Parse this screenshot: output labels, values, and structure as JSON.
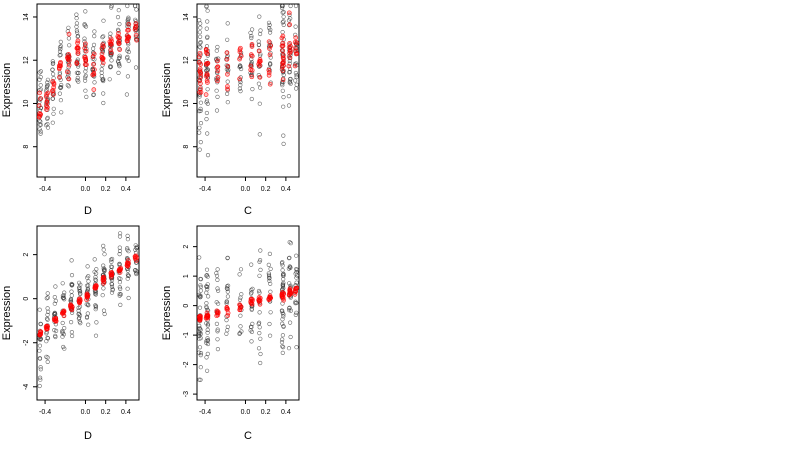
{
  "chart_data": [
    {
      "type": "scatter",
      "xlabel": "D",
      "ylabel": "Expression",
      "xticks": [
        "-0.4",
        "0.0",
        "0.2",
        "0.4"
      ],
      "yticks": [
        "8",
        "10",
        "12",
        "14"
      ],
      "xlim": [
        -0.48,
        0.53
      ],
      "ylim": [
        6.6,
        14.6
      ],
      "groups": [
        {
          "x": -0.45,
          "obs_mean": 10.2,
          "obs_sd": 1.0,
          "n": 22,
          "fit_mean": 9.7,
          "fit_sd": 0.35,
          "fit_n": 8
        },
        {
          "x": -0.38,
          "obs_mean": 10.3,
          "obs_sd": 0.8,
          "n": 20,
          "fit_mean": 10.1,
          "fit_sd": 0.3,
          "fit_n": 8
        },
        {
          "x": -0.32,
          "obs_mean": 10.8,
          "obs_sd": 0.7,
          "n": 16,
          "fit_mean": 10.7,
          "fit_sd": 0.3,
          "fit_n": 7
        },
        {
          "x": -0.25,
          "obs_mean": 11.4,
          "obs_sd": 0.8,
          "n": 18,
          "fit_mean": 11.5,
          "fit_sd": 0.3,
          "fit_n": 8
        },
        {
          "x": -0.17,
          "obs_mean": 12.0,
          "obs_sd": 0.8,
          "n": 22,
          "fit_mean": 12.1,
          "fit_sd": 0.4,
          "fit_n": 10
        },
        {
          "x": -0.08,
          "obs_mean": 12.2,
          "obs_sd": 0.9,
          "n": 22,
          "fit_mean": 12.2,
          "fit_sd": 0.4,
          "fit_n": 10
        },
        {
          "x": 0.0,
          "obs_mean": 12.3,
          "obs_sd": 0.9,
          "n": 22,
          "fit_mean": 12.3,
          "fit_sd": 0.4,
          "fit_n": 10
        },
        {
          "x": 0.08,
          "obs_mean": 11.8,
          "obs_sd": 0.9,
          "n": 20,
          "fit_mean": 11.8,
          "fit_sd": 0.4,
          "fit_n": 8
        },
        {
          "x": 0.17,
          "obs_mean": 12.1,
          "obs_sd": 0.9,
          "n": 22,
          "fit_mean": 12.2,
          "fit_sd": 0.3,
          "fit_n": 10
        },
        {
          "x": 0.25,
          "obs_mean": 12.5,
          "obs_sd": 0.9,
          "n": 20,
          "fit_mean": 12.6,
          "fit_sd": 0.3,
          "fit_n": 8
        },
        {
          "x": 0.33,
          "obs_mean": 12.8,
          "obs_sd": 0.8,
          "n": 20,
          "fit_mean": 12.8,
          "fit_sd": 0.3,
          "fit_n": 8
        },
        {
          "x": 0.42,
          "obs_mean": 13.2,
          "obs_sd": 0.8,
          "n": 22,
          "fit_mean": 13.2,
          "fit_sd": 0.3,
          "fit_n": 10
        },
        {
          "x": 0.5,
          "obs_mean": 13.2,
          "obs_sd": 0.6,
          "n": 16,
          "fit_mean": 13.3,
          "fit_sd": 0.3,
          "fit_n": 6
        }
      ],
      "observed_color": "#333333",
      "fitted_color": "#ff0000",
      "grid": false
    },
    {
      "type": "scatter",
      "xlabel": "C",
      "ylabel": "Expression",
      "xticks": [
        "-0.4",
        "0.0",
        "0.2",
        "0.4"
      ],
      "yticks": [
        "8",
        "10",
        "12",
        "14"
      ],
      "xlim": [
        -0.48,
        0.53
      ],
      "ylim": [
        6.6,
        14.6
      ],
      "groups": [
        {
          "x": -0.45,
          "obs_mean": 11.0,
          "obs_sd": 1.3,
          "n": 34,
          "fit_mean": 11.4,
          "fit_sd": 0.6,
          "fit_n": 14
        },
        {
          "x": -0.38,
          "obs_mean": 11.2,
          "obs_sd": 1.4,
          "n": 34,
          "fit_mean": 11.5,
          "fit_sd": 0.6,
          "fit_n": 14
        },
        {
          "x": -0.28,
          "obs_mean": 11.5,
          "obs_sd": 1.0,
          "n": 16,
          "fit_mean": 11.6,
          "fit_sd": 0.5,
          "fit_n": 6
        },
        {
          "x": -0.18,
          "obs_mean": 11.6,
          "obs_sd": 1.1,
          "n": 16,
          "fit_mean": 11.7,
          "fit_sd": 0.5,
          "fit_n": 6
        },
        {
          "x": -0.05,
          "obs_mean": 11.8,
          "obs_sd": 1.0,
          "n": 14,
          "fit_mean": 11.8,
          "fit_sd": 0.5,
          "fit_n": 6
        },
        {
          "x": 0.06,
          "obs_mean": 11.9,
          "obs_sd": 1.1,
          "n": 18,
          "fit_mean": 11.9,
          "fit_sd": 0.5,
          "fit_n": 8
        },
        {
          "x": 0.14,
          "obs_mean": 11.7,
          "obs_sd": 1.1,
          "n": 18,
          "fit_mean": 11.8,
          "fit_sd": 0.5,
          "fit_n": 8
        },
        {
          "x": 0.24,
          "obs_mean": 12.0,
          "obs_sd": 1.1,
          "n": 18,
          "fit_mean": 12.1,
          "fit_sd": 0.5,
          "fit_n": 8
        },
        {
          "x": 0.37,
          "obs_mean": 12.1,
          "obs_sd": 1.5,
          "n": 40,
          "fit_mean": 12.2,
          "fit_sd": 0.8,
          "fit_n": 16
        },
        {
          "x": 0.44,
          "obs_mean": 12.2,
          "obs_sd": 1.2,
          "n": 26,
          "fit_mean": 12.3,
          "fit_sd": 0.6,
          "fit_n": 10
        },
        {
          "x": 0.5,
          "obs_mean": 12.4,
          "obs_sd": 1.0,
          "n": 20,
          "fit_mean": 12.6,
          "fit_sd": 0.5,
          "fit_n": 8
        }
      ],
      "observed_color": "#333333",
      "fitted_color": "#ff0000",
      "grid": false
    },
    {
      "type": "scatter",
      "xlabel": "D",
      "ylabel": "Expression",
      "xticks": [
        "-0.4",
        "0.0",
        "0.2",
        "0.4"
      ],
      "yticks": [
        "-4",
        "-2",
        "0",
        "2"
      ],
      "xlim": [
        -0.48,
        0.53
      ],
      "ylim": [
        -4.6,
        3.3
      ],
      "groups": [
        {
          "x": -0.45,
          "obs_mean": -2.0,
          "obs_sd": 1.0,
          "n": 20,
          "fit_mean": -1.6,
          "fit_sd": 0.08,
          "fit_n": 8
        },
        {
          "x": -0.38,
          "obs_mean": -1.4,
          "obs_sd": 0.7,
          "n": 18,
          "fit_mean": -1.3,
          "fit_sd": 0.08,
          "fit_n": 8
        },
        {
          "x": -0.3,
          "obs_mean": -1.0,
          "obs_sd": 0.7,
          "n": 18,
          "fit_mean": -1.0,
          "fit_sd": 0.08,
          "fit_n": 8
        },
        {
          "x": -0.22,
          "obs_mean": -0.6,
          "obs_sd": 0.8,
          "n": 20,
          "fit_mean": -0.7,
          "fit_sd": 0.08,
          "fit_n": 8
        },
        {
          "x": -0.14,
          "obs_mean": -0.3,
          "obs_sd": 0.8,
          "n": 22,
          "fit_mean": -0.4,
          "fit_sd": 0.08,
          "fit_n": 8
        },
        {
          "x": -0.06,
          "obs_mean": -0.1,
          "obs_sd": 0.8,
          "n": 22,
          "fit_mean": -0.15,
          "fit_sd": 0.08,
          "fit_n": 8
        },
        {
          "x": 0.02,
          "obs_mean": 0.2,
          "obs_sd": 0.8,
          "n": 22,
          "fit_mean": 0.1,
          "fit_sd": 0.08,
          "fit_n": 8
        },
        {
          "x": 0.1,
          "obs_mean": 0.6,
          "obs_sd": 0.8,
          "n": 22,
          "fit_mean": 0.5,
          "fit_sd": 0.08,
          "fit_n": 8
        },
        {
          "x": 0.18,
          "obs_mean": 0.9,
          "obs_sd": 0.8,
          "n": 22,
          "fit_mean": 0.8,
          "fit_sd": 0.08,
          "fit_n": 8
        },
        {
          "x": 0.26,
          "obs_mean": 1.1,
          "obs_sd": 0.7,
          "n": 20,
          "fit_mean": 1.1,
          "fit_sd": 0.08,
          "fit_n": 8
        },
        {
          "x": 0.34,
          "obs_mean": 1.3,
          "obs_sd": 0.7,
          "n": 20,
          "fit_mean": 1.3,
          "fit_sd": 0.08,
          "fit_n": 8
        },
        {
          "x": 0.42,
          "obs_mean": 1.6,
          "obs_sd": 0.6,
          "n": 20,
          "fit_mean": 1.6,
          "fit_sd": 0.08,
          "fit_n": 8
        },
        {
          "x": 0.5,
          "obs_mean": 1.8,
          "obs_sd": 0.5,
          "n": 14,
          "fit_mean": 1.85,
          "fit_sd": 0.08,
          "fit_n": 6
        }
      ],
      "observed_color": "#333333",
      "fitted_color": "#ff0000",
      "grid": false
    },
    {
      "type": "scatter",
      "xlabel": "C",
      "ylabel": "Expression",
      "xticks": [
        "-0.4",
        "0.0",
        "0.2",
        "0.4"
      ],
      "yticks": [
        "-3",
        "-2",
        "-1",
        "0",
        "1",
        "2"
      ],
      "xlim": [
        -0.48,
        0.53
      ],
      "ylim": [
        -3.2,
        2.7
      ],
      "groups": [
        {
          "x": -0.45,
          "obs_mean": -0.5,
          "obs_sd": 1.0,
          "n": 32,
          "fit_mean": -0.45,
          "fit_sd": 0.06,
          "fit_n": 10
        },
        {
          "x": -0.38,
          "obs_mean": -0.4,
          "obs_sd": 1.0,
          "n": 32,
          "fit_mean": -0.38,
          "fit_sd": 0.06,
          "fit_n": 10
        },
        {
          "x": -0.28,
          "obs_mean": -0.3,
          "obs_sd": 0.8,
          "n": 16,
          "fit_mean": -0.28,
          "fit_sd": 0.06,
          "fit_n": 6
        },
        {
          "x": -0.18,
          "obs_mean": -0.2,
          "obs_sd": 0.8,
          "n": 16,
          "fit_mean": -0.18,
          "fit_sd": 0.06,
          "fit_n": 6
        },
        {
          "x": -0.05,
          "obs_mean": -0.05,
          "obs_sd": 0.8,
          "n": 14,
          "fit_mean": -0.05,
          "fit_sd": 0.06,
          "fit_n": 6
        },
        {
          "x": 0.06,
          "obs_mean": 0.1,
          "obs_sd": 0.8,
          "n": 18,
          "fit_mean": 0.12,
          "fit_sd": 0.06,
          "fit_n": 8
        },
        {
          "x": 0.14,
          "obs_mean": 0.15,
          "obs_sd": 0.8,
          "n": 18,
          "fit_mean": 0.18,
          "fit_sd": 0.06,
          "fit_n": 8
        },
        {
          "x": 0.24,
          "obs_mean": 0.25,
          "obs_sd": 0.8,
          "n": 18,
          "fit_mean": 0.25,
          "fit_sd": 0.06,
          "fit_n": 8
        },
        {
          "x": 0.37,
          "obs_mean": 0.3,
          "obs_sd": 0.9,
          "n": 36,
          "fit_mean": 0.35,
          "fit_sd": 0.08,
          "fit_n": 12
        },
        {
          "x": 0.44,
          "obs_mean": 0.4,
          "obs_sd": 0.8,
          "n": 26,
          "fit_mean": 0.45,
          "fit_sd": 0.06,
          "fit_n": 10
        },
        {
          "x": 0.5,
          "obs_mean": 0.5,
          "obs_sd": 0.8,
          "n": 18,
          "fit_mean": 0.55,
          "fit_sd": 0.06,
          "fit_n": 8
        }
      ],
      "observed_color": "#333333",
      "fitted_color": "#ff0000",
      "grid": false
    }
  ]
}
